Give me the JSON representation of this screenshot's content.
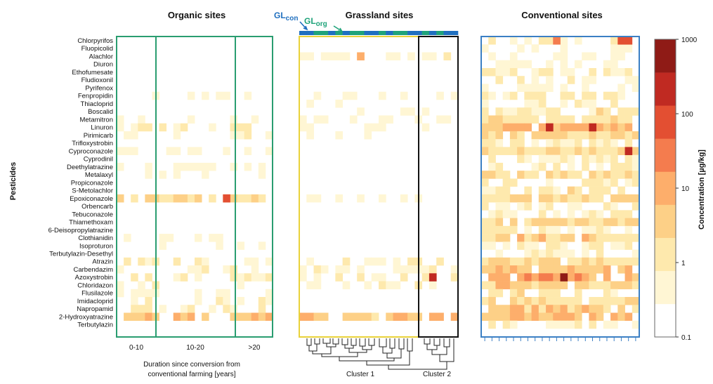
{
  "chart_data": {
    "type": "heatmap",
    "ylabel": "Pesticides",
    "pesticides": [
      "Chlorpyrifos",
      "Fluopicolid",
      "Alachlor",
      "Diuron",
      "Ethofumesate",
      "Fludioxonil",
      "Pyrifenox",
      "Fenpropidin",
      "Thiacloprid",
      "Boscalid",
      "Metamitron",
      "Linuron",
      "Pirimicarb",
      "Trifloxystrobin",
      "Cyproconazole",
      "Cyprodinil",
      "Deethylatrazine",
      "Metalaxyl",
      "Propiconazole",
      "S-Metolachlor",
      "Epoxiconazole",
      "Orbencarb",
      "Tebuconazole",
      "Thiamethoxam",
      "6-Deisopropylatrazine",
      "Clothianidin",
      "Isoproturon",
      "Terbutylazin-Desethyl",
      "Atrazin",
      "Carbendazim",
      "Azoxystrobin",
      "Chloridazon",
      "Flusilazole",
      "Imidacloprid",
      "Napropamid",
      "2-Hydroxyatrazine",
      "Terbutylazin"
    ],
    "panels": [
      {
        "title": "Organic sites",
        "groups": [
          "0-10",
          "10-20",
          ">20"
        ],
        "xlabel": "Duration since conversion from conventional farming [years]"
      },
      {
        "title": "Grassland sites",
        "groups": [
          "Cluster 1",
          "Cluster 2"
        ],
        "site_types": [
          "GLcon",
          "GLorg"
        ]
      },
      {
        "title": "Conventional sites"
      }
    ],
    "colorbar": {
      "label": "Concentration [µg/kg]",
      "scale": "log",
      "ticks": [
        "1000",
        "100",
        "10",
        "1",
        "0.1"
      ],
      "range": [
        0.1,
        1000
      ],
      "colors": [
        "#ffffff",
        "#fff6d4",
        "#fee9ad",
        "#fdd087",
        "#fdae6b",
        "#f47c4e",
        "#e34f32",
        "#c02a22",
        "#8f1b16"
      ]
    },
    "series_colors": {
      "organic": "#2a9d70",
      "grassland": "#e9d23a",
      "conventional": "#3b7fc4",
      "cluster2": "#111111",
      "GLcon": "#1f6fbf",
      "GLorg": "#1fa37a"
    }
  },
  "labels": {
    "title_organic": "Organic sites",
    "title_grassland": "Grassland sites",
    "title_conventional": "Conventional sites",
    "gl_con_main": "GL",
    "gl_con_sub": "con",
    "gl_org_main": "GL",
    "gl_org_sub": "org",
    "y_axis": "Pesticides",
    "group_1": "0-10",
    "group_2": "10-20",
    "group_3": ">20",
    "x_axis_line1": "Duration since conversion from",
    "x_axis_line2": "conventional farming [years]",
    "cluster_1": "Cluster 1",
    "cluster_2": "Cluster 2",
    "colorbar_label": "Concentration [µg/kg]"
  }
}
